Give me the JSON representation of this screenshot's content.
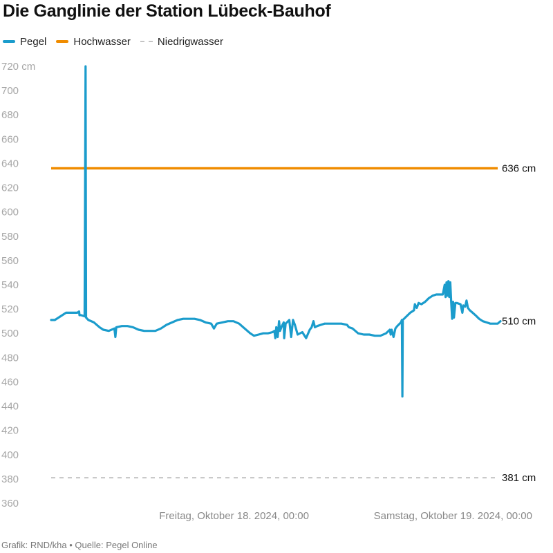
{
  "title": "Die Ganglinie der Station Lübeck-Bauhof",
  "footer": "Grafik: RND/kha • Quelle: Pegel Online",
  "colors": {
    "pegel": "#1b9ccc",
    "hochwasser": "#f08c00",
    "niedrigwasser": "#c4c4c4"
  },
  "chart_data": {
    "type": "line",
    "title": "Die Ganglinie der Station Lübeck-Bauhof",
    "xlabel": "",
    "ylabel": "",
    "y_unit": "cm",
    "ylim": [
      360,
      720
    ],
    "yticks": [
      "720 cm",
      "700",
      "680",
      "660",
      "640",
      "620",
      "600",
      "580",
      "560",
      "540",
      "520",
      "500",
      "480",
      "460",
      "440",
      "420",
      "400",
      "380",
      "360"
    ],
    "x_unit": "hours since Donnerstag, Oktober 17. 2024, 00:00",
    "xlim": [
      0,
      48
    ],
    "xticks": [
      {
        "x": 24,
        "label": "Freitag, Oktober 18. 2024, 00:00"
      },
      {
        "x": 48,
        "label": "Samstag, Oktober 19. 2024, 00:00"
      }
    ],
    "grid": false,
    "legend_position": "top-left",
    "series": [
      {
        "name": "Pegel",
        "style": "solid",
        "points": [
          [
            0.0,
            511
          ],
          [
            0.4,
            511
          ],
          [
            0.8,
            513
          ],
          [
            1.2,
            515
          ],
          [
            1.6,
            517
          ],
          [
            2.0,
            517
          ],
          [
            2.4,
            517
          ],
          [
            2.8,
            517
          ],
          [
            3.0,
            518
          ],
          [
            3.05,
            515
          ],
          [
            3.2,
            515
          ],
          [
            3.6,
            514
          ],
          [
            3.7,
            720
          ],
          [
            3.75,
            513
          ],
          [
            4.0,
            511
          ],
          [
            4.6,
            509
          ],
          [
            5.2,
            505
          ],
          [
            5.6,
            503
          ],
          [
            6.2,
            502
          ],
          [
            6.8,
            504
          ],
          [
            6.9,
            497
          ],
          [
            7.0,
            505
          ],
          [
            7.6,
            506
          ],
          [
            8.2,
            506
          ],
          [
            8.8,
            505
          ],
          [
            9.4,
            503
          ],
          [
            10.0,
            502
          ],
          [
            10.6,
            502
          ],
          [
            11.2,
            502
          ],
          [
            11.8,
            504
          ],
          [
            12.4,
            507
          ],
          [
            13.0,
            509
          ],
          [
            13.6,
            511
          ],
          [
            14.2,
            512
          ],
          [
            14.8,
            512
          ],
          [
            15.4,
            512
          ],
          [
            16.0,
            511
          ],
          [
            16.6,
            509
          ],
          [
            17.2,
            508
          ],
          [
            17.5,
            504
          ],
          [
            17.8,
            508
          ],
          [
            18.4,
            509
          ],
          [
            19.0,
            510
          ],
          [
            19.6,
            510
          ],
          [
            20.2,
            508
          ],
          [
            20.8,
            504
          ],
          [
            21.4,
            500
          ],
          [
            21.8,
            498
          ],
          [
            22.3,
            499
          ],
          [
            22.8,
            500
          ],
          [
            23.3,
            500
          ],
          [
            23.8,
            501
          ],
          [
            24.0,
            502
          ],
          [
            24.1,
            496
          ],
          [
            24.2,
            505
          ],
          [
            24.35,
            497
          ],
          [
            24.5,
            510
          ],
          [
            24.6,
            502
          ],
          [
            24.8,
            506
          ],
          [
            25.0,
            509
          ],
          [
            25.05,
            496
          ],
          [
            25.2,
            508
          ],
          [
            25.6,
            511
          ],
          [
            25.8,
            497
          ],
          [
            26.0,
            511
          ],
          [
            26.2,
            507
          ],
          [
            26.5,
            499
          ],
          [
            27.0,
            501
          ],
          [
            27.4,
            496
          ],
          [
            27.8,
            503
          ],
          [
            28.0,
            505
          ],
          [
            28.2,
            510
          ],
          [
            28.35,
            505
          ],
          [
            28.6,
            506
          ],
          [
            29.0,
            507
          ],
          [
            29.4,
            508
          ],
          [
            30.0,
            508
          ],
          [
            30.6,
            508
          ],
          [
            31.2,
            508
          ],
          [
            31.8,
            507
          ],
          [
            32.0,
            505
          ],
          [
            32.4,
            504
          ],
          [
            33.0,
            500
          ],
          [
            33.6,
            499
          ],
          [
            34.2,
            499
          ],
          [
            34.8,
            498
          ],
          [
            35.4,
            498
          ],
          [
            36.0,
            500
          ],
          [
            36.4,
            503
          ],
          [
            36.5,
            499
          ],
          [
            36.6,
            503
          ],
          [
            36.8,
            497
          ],
          [
            37.0,
            504
          ],
          [
            37.2,
            506
          ],
          [
            37.6,
            509
          ],
          [
            37.7,
            511
          ],
          [
            37.75,
            448
          ],
          [
            37.8,
            511
          ],
          [
            38.2,
            514
          ],
          [
            38.6,
            517
          ],
          [
            39.0,
            519
          ],
          [
            39.1,
            524
          ],
          [
            39.3,
            521
          ],
          [
            39.5,
            525
          ],
          [
            39.8,
            524
          ],
          [
            40.2,
            526
          ],
          [
            40.6,
            529
          ],
          [
            41.0,
            531
          ],
          [
            41.4,
            532
          ],
          [
            41.8,
            532
          ],
          [
            42.1,
            532
          ],
          [
            42.3,
            540
          ],
          [
            42.4,
            530
          ],
          [
            42.5,
            542
          ],
          [
            42.6,
            531
          ],
          [
            42.7,
            543
          ],
          [
            42.8,
            530
          ],
          [
            42.9,
            542
          ],
          [
            43.0,
            526
          ],
          [
            43.1,
            512
          ],
          [
            43.2,
            526
          ],
          [
            43.3,
            513
          ],
          [
            43.45,
            525
          ],
          [
            43.6,
            525
          ],
          [
            44.0,
            524
          ],
          [
            44.2,
            517
          ],
          [
            44.3,
            523
          ],
          [
            44.5,
            522
          ],
          [
            44.65,
            527
          ],
          [
            44.8,
            521
          ],
          [
            45.0,
            519
          ],
          [
            45.3,
            517
          ],
          [
            45.6,
            515
          ],
          [
            46.0,
            512
          ],
          [
            46.4,
            510
          ],
          [
            46.8,
            509
          ],
          [
            47.2,
            508
          ],
          [
            47.6,
            508
          ],
          [
            48.0,
            508
          ],
          [
            48.3,
            510
          ]
        ]
      },
      {
        "name": "Hochwasser",
        "style": "solid",
        "value": 636,
        "label": "636 cm"
      },
      {
        "name": "Niedrigwasser",
        "style": "dashed",
        "value": 381,
        "label": "381 cm"
      }
    ]
  }
}
